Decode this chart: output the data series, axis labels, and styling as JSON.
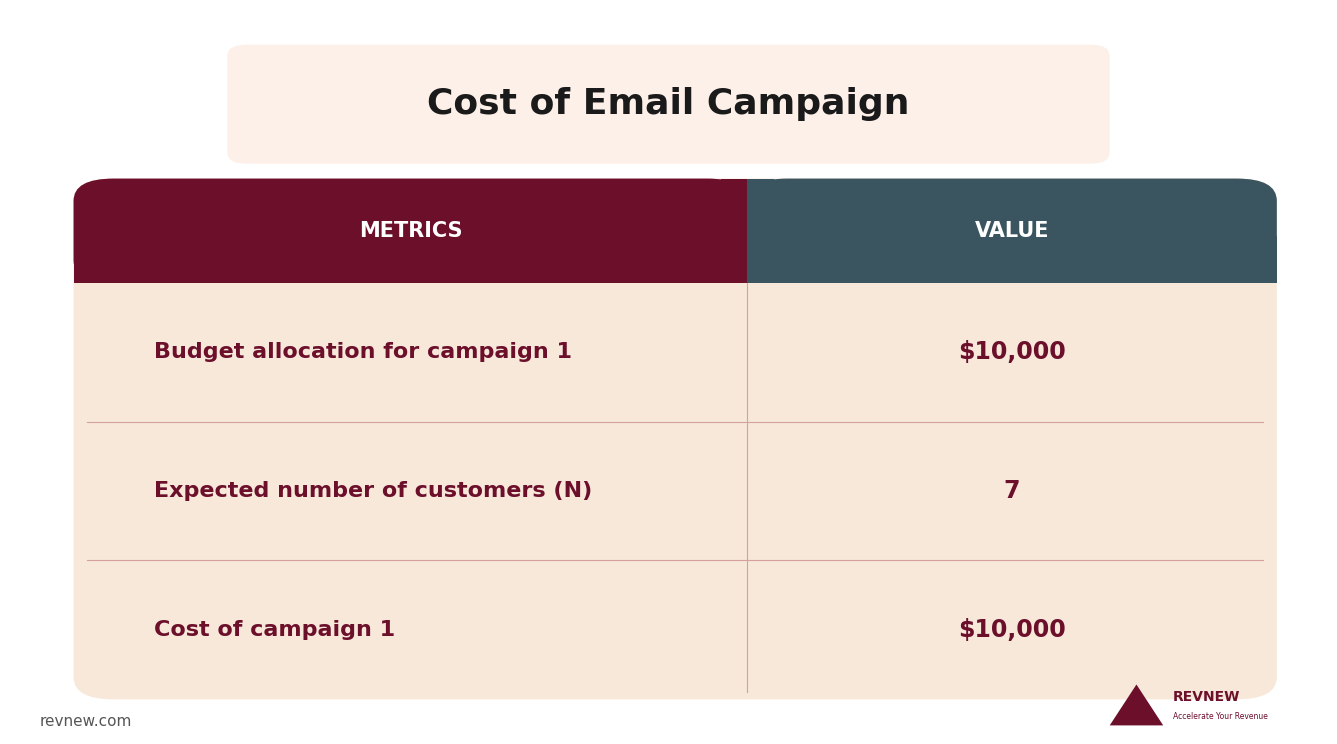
{
  "title": "Cost of Email Campaign",
  "title_bg_color": "#fdf0e8",
  "title_fontsize": 26,
  "title_color": "#1a1a1a",
  "header_metrics_bg": "#6b0f2b",
  "header_value_bg": "#3a5560",
  "header_text_color": "#ffffff",
  "header_label_metrics": "METRICS",
  "header_label_value": "VALUE",
  "row_bg_color": "#f7e8da",
  "row_text_color": "#6b0f2b",
  "divider_color": "#d4a0a0",
  "metrics": [
    "Budget allocation for campaign 1",
    "Expected number of customers (N)",
    "Cost of campaign 1"
  ],
  "values": [
    "$10,000",
    "7",
    "$10,000"
  ],
  "bg_color": "#ffffff",
  "footer_text": "revnew.com",
  "footer_color": "#555555",
  "col_split": 0.56
}
